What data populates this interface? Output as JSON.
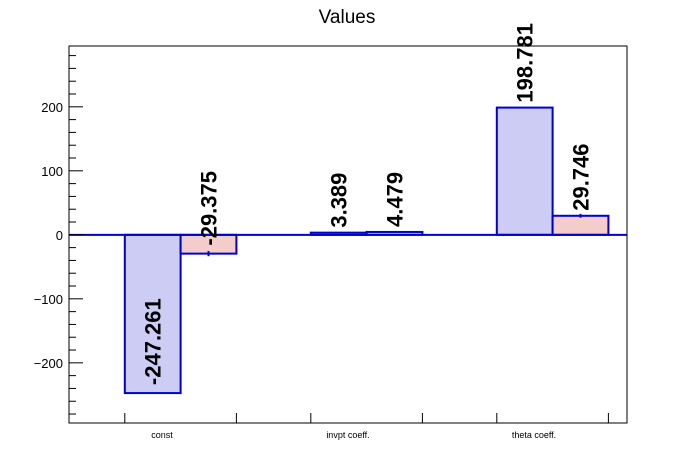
{
  "chart_data": {
    "type": "bar",
    "title": "Values",
    "xlabel": "",
    "ylabel": "",
    "categories": [
      "const",
      "invpt coeff.",
      "theta coeff."
    ],
    "series": [
      {
        "values": [
          -247.261,
          3.389,
          198.781
        ],
        "errors": [
          0,
          0,
          0
        ],
        "labels": [
          "-247.261",
          "3.389",
          "198.781"
        ],
        "fill": "#ccccf5",
        "stroke": "#0000cc"
      },
      {
        "values": [
          -29.375,
          4.479,
          29.746
        ],
        "errors": [
          4,
          0.8,
          3
        ],
        "labels": [
          "-29.375",
          "4.479",
          "29.746"
        ],
        "fill": "#f5cccc",
        "stroke": "#0000cc"
      }
    ],
    "ylim": [
      -294,
      295
    ],
    "yticks": [
      -200,
      -100,
      0,
      100,
      200
    ],
    "ytick_labels": [
      "−200",
      "−100",
      "0",
      "100",
      "200"
    ],
    "grid": false,
    "legend": "none"
  }
}
